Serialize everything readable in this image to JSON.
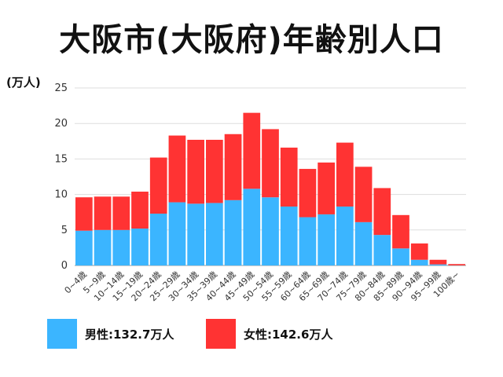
{
  "chart_data": {
    "type": "bar",
    "stacked": true,
    "title": "大阪市(大阪府)年齢別人口",
    "ylabel": "(万人)",
    "xlabel": "",
    "ylim": [
      0,
      25
    ],
    "yticks": [
      0,
      5,
      10,
      15,
      20,
      25
    ],
    "grid": true,
    "legend_position": "bottom-left",
    "categories": [
      "0~4歳",
      "5~9歳",
      "10~14歳",
      "15~19歳",
      "20~24歳",
      "25~29歳",
      "30~34歳",
      "35~39歳",
      "40~44歳",
      "45~49歳",
      "50~54歳",
      "55~59歳",
      "60~64歳",
      "65~69歳",
      "70~74歳",
      "75~79歳",
      "80~84歳",
      "85~89歳",
      "90~94歳",
      "95~99歳",
      "100歳~"
    ],
    "series": [
      {
        "name": "男性",
        "color": "#3bb5ff",
        "values": [
          4.9,
          5.0,
          5.0,
          5.2,
          7.3,
          8.9,
          8.7,
          8.8,
          9.2,
          10.8,
          9.6,
          8.3,
          6.8,
          7.2,
          8.3,
          6.1,
          4.3,
          2.4,
          0.8,
          0.15,
          0.02
        ]
      },
      {
        "name": "女性",
        "color": "#ff3333",
        "values": [
          4.7,
          4.7,
          4.7,
          5.2,
          7.9,
          9.4,
          9.0,
          8.9,
          9.3,
          10.7,
          9.6,
          8.3,
          6.8,
          7.3,
          9.0,
          7.8,
          6.6,
          4.7,
          2.3,
          0.65,
          0.18
        ]
      }
    ]
  },
  "legend": {
    "male_label": "男性:132.7万人",
    "female_label": "女性:142.6万人",
    "male_color": "#3bb5ff",
    "female_color": "#ff3333"
  }
}
